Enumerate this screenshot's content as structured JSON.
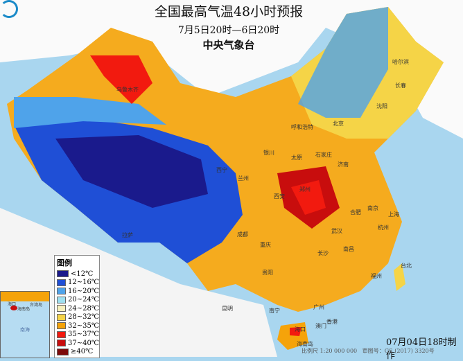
{
  "header": {
    "title": "全国最高气温48小时预报",
    "period": "7月5日20时—6日20时",
    "agency": "中央气象台"
  },
  "legend": {
    "title": "图例",
    "items": [
      {
        "label": "<12℃",
        "color": "#1a1a8c"
      },
      {
        "label": "12~16℃",
        "color": "#1f4fd6"
      },
      {
        "label": "16~20℃",
        "color": "#4fa3ea"
      },
      {
        "label": "20~24℃",
        "color": "#9fe0f0"
      },
      {
        "label": "24~28℃",
        "color": "#f7f0bd"
      },
      {
        "label": "28~32℃",
        "color": "#f5d447"
      },
      {
        "label": "32~35℃",
        "color": "#f5a30a"
      },
      {
        "label": "35~37℃",
        "color": "#f21a0f"
      },
      {
        "label": "37~40℃",
        "color": "#c80d0d"
      },
      {
        "label": "≥40℃",
        "color": "#7d0a0a"
      }
    ]
  },
  "footer": {
    "made": "07月04日18时制作",
    "scale": "比例尺 1:20 000 000",
    "approval": "审图号：GS (2017) 3320号"
  },
  "inset": {
    "labels": [
      "台湾岛",
      "海南岛",
      "南海",
      "海口"
    ]
  },
  "cities": [
    "哈尔滨",
    "长春",
    "沈阳",
    "北京",
    "呼和浩特",
    "银川",
    "太原",
    "石家庄",
    "济南",
    "西宁",
    "兰州",
    "西安",
    "郑州",
    "合肥",
    "南京",
    "上海",
    "杭州",
    "武汉",
    "成都",
    "重庆",
    "长沙",
    "南昌",
    "贵阳",
    "昆明",
    "南宁",
    "广州",
    "澳门",
    "香港",
    "福州",
    "台北",
    "海口",
    "拉萨",
    "乌鲁木齐",
    "海南岛"
  ]
}
